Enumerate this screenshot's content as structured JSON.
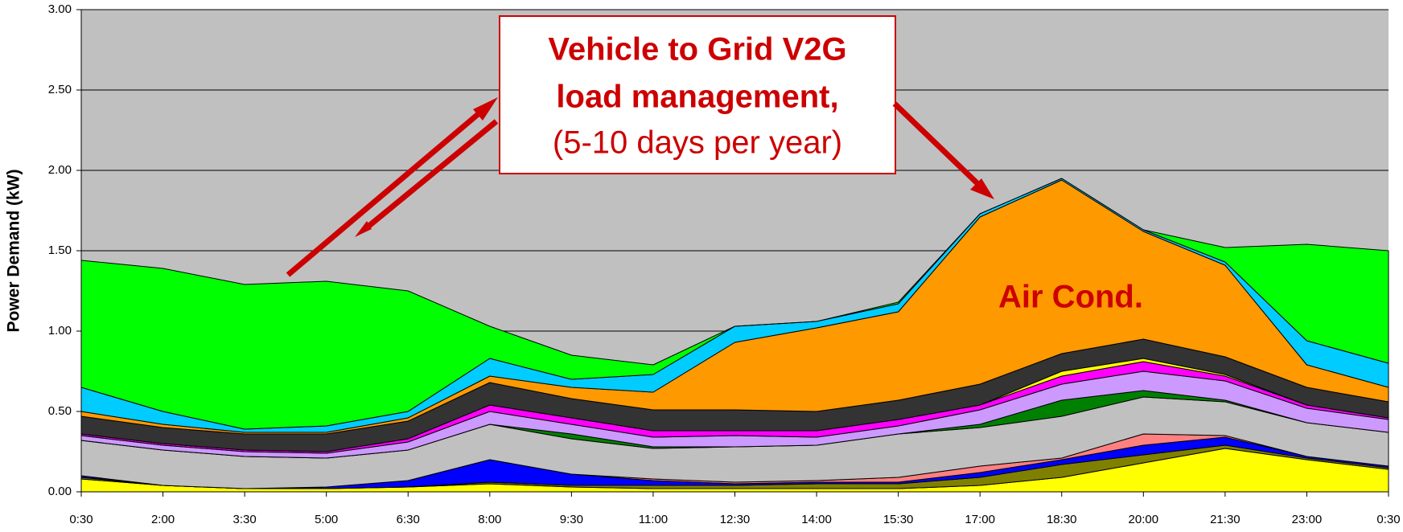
{
  "chart_data": {
    "type": "stacked_area",
    "ylabel": "Power Demand (kW)",
    "annotations": [
      "Vehicle to Grid V2G",
      "load management,",
      "(5-10 days per year)",
      "Air Cond."
    ],
    "annotation_color": "#cc0000",
    "background": "#c0c0c0",
    "grid": true,
    "categories": [
      "0:30",
      "2:00",
      "3:30",
      "5:00",
      "6:30",
      "8:00",
      "9:30",
      "11:00",
      "12:30",
      "14:00",
      "15:30",
      "17:00",
      "18:30",
      "20:00",
      "21:30",
      "23:00",
      "0:30"
    ],
    "ylim": [
      0,
      3
    ],
    "yticks": [
      {
        "value": 0,
        "label": "0.00"
      },
      {
        "value": 0.5,
        "label": "0.50"
      },
      {
        "value": 1,
        "label": "1.00"
      },
      {
        "value": 1.5,
        "label": "1.50"
      },
      {
        "value": 2,
        "label": "2.00"
      },
      {
        "value": 2.5,
        "label": "2.50"
      },
      {
        "value": 3,
        "label": "3.00"
      }
    ],
    "series": [
      {
        "color": "#ffff00",
        "values": [
          0.08,
          0.04,
          0.02,
          0.02,
          0.03,
          0.05,
          0.03,
          0.02,
          0.02,
          0.02,
          0.02,
          0.04,
          0.09,
          0.18,
          0.27,
          0.2,
          0.14
        ]
      },
      {
        "color": "#808000",
        "values": [
          0.01,
          0,
          0,
          0,
          0,
          0.01,
          0.01,
          0.02,
          0.02,
          0.03,
          0.03,
          0.05,
          0.08,
          0.05,
          0.02,
          0.01,
          0.01
        ]
      },
      {
        "color": "#0000ff",
        "values": [
          0.01,
          0,
          0,
          0.01,
          0.04,
          0.14,
          0.07,
          0.03,
          0.01,
          0.01,
          0.01,
          0.03,
          0.03,
          0.06,
          0.05,
          0.01,
          0.01
        ]
      },
      {
        "color": "#ff8080",
        "values": [
          0,
          0,
          0,
          0,
          0,
          0,
          0,
          0.01,
          0.01,
          0.01,
          0.03,
          0.04,
          0.01,
          0.07,
          0.01,
          0,
          0
        ]
      },
      {
        "color": "#c0c0c0",
        "values": [
          0.22,
          0.22,
          0.2,
          0.18,
          0.19,
          0.22,
          0.22,
          0.19,
          0.22,
          0.22,
          0.27,
          0.24,
          0.26,
          0.23,
          0.21,
          0.21,
          0.21
        ]
      },
      {
        "color": "#008000",
        "values": [
          0,
          0,
          0,
          0,
          0,
          0,
          0.03,
          0.01,
          0,
          0,
          0,
          0.02,
          0.1,
          0.04,
          0.01,
          0,
          0
        ]
      },
      {
        "color": "#cc99ff",
        "values": [
          0.03,
          0.03,
          0.03,
          0.03,
          0.05,
          0.08,
          0.06,
          0.06,
          0.07,
          0.05,
          0.05,
          0.09,
          0.1,
          0.12,
          0.12,
          0.09,
          0.08
        ]
      },
      {
        "color": "#ff00ff",
        "values": [
          0.01,
          0.01,
          0.01,
          0.01,
          0.02,
          0.04,
          0.04,
          0.04,
          0.03,
          0.04,
          0.04,
          0.03,
          0.05,
          0.06,
          0.03,
          0.02,
          0.01
        ]
      },
      {
        "color": "#ffff00",
        "values": [
          0,
          0,
          0,
          0,
          0,
          0,
          0,
          0,
          0,
          0,
          0,
          0,
          0.03,
          0.02,
          0.01,
          0,
          0
        ]
      },
      {
        "color": "#333333",
        "values": [
          0.11,
          0.1,
          0.1,
          0.11,
          0.11,
          0.14,
          0.12,
          0.13,
          0.13,
          0.12,
          0.12,
          0.13,
          0.11,
          0.12,
          0.11,
          0.11,
          0.1
        ]
      },
      {
        "color": "#ff9900",
        "values": [
          0.03,
          0.02,
          0.01,
          0.01,
          0.02,
          0.04,
          0.07,
          0.11,
          0.42,
          0.52,
          0.55,
          1.04,
          1.08,
          0.67,
          0.57,
          0.14,
          0.09
        ]
      },
      {
        "color": "#00ccff",
        "values": [
          0.15,
          0.08,
          0.02,
          0.04,
          0.04,
          0.11,
          0.05,
          0.11,
          0.1,
          0.04,
          0.05,
          0.02,
          0.01,
          0.01,
          0.02,
          0.15,
          0.15
        ]
      },
      {
        "color": "#00ff00",
        "values": [
          0.79,
          0.89,
          0.9,
          0.9,
          0.75,
          0.2,
          0.15,
          0.06,
          0,
          0,
          0.01,
          0,
          0,
          0,
          0.09,
          0.6,
          0.7
        ]
      }
    ]
  }
}
